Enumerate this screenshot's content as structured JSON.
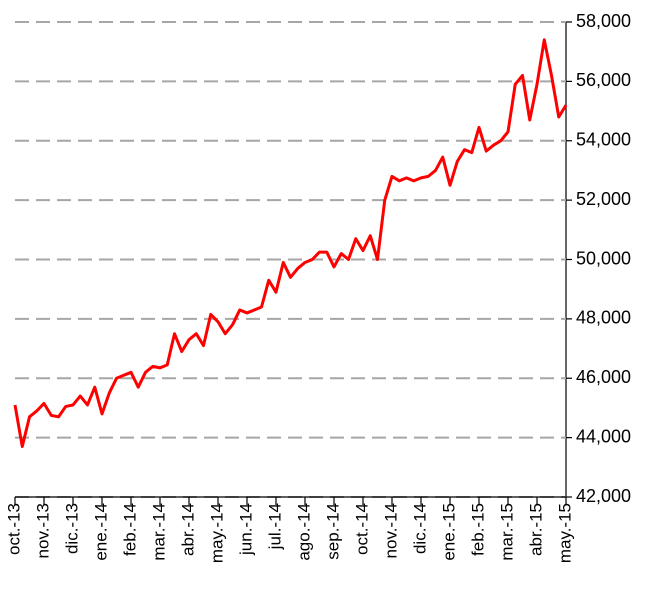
{
  "chart_data": {
    "type": "line",
    "categories": [
      "oct.-13",
      null,
      null,
      null,
      "nov.-13",
      null,
      null,
      null,
      "dic.-13",
      null,
      null,
      null,
      "ene.-14",
      null,
      null,
      null,
      "feb.-14",
      null,
      null,
      null,
      "mar.-14",
      null,
      null,
      null,
      "abr.-14",
      null,
      null,
      null,
      "may.-14",
      null,
      null,
      null,
      "jun.-14",
      null,
      null,
      null,
      "jul.-14",
      null,
      null,
      null,
      "ago.-14",
      null,
      null,
      null,
      "sep.-14",
      null,
      null,
      null,
      "oct.-14",
      null,
      null,
      null,
      "nov.-14",
      null,
      null,
      null,
      "dic.-14",
      null,
      null,
      null,
      "ene.-15",
      null,
      null,
      null,
      "feb.-15",
      null,
      null,
      null,
      "mar.-15",
      null,
      null,
      null,
      "abr.-15",
      null,
      null,
      null,
      "may.-15"
    ],
    "series": [
      {
        "color": "#ff0000",
        "values": [
          45100,
          43700,
          44700,
          44900,
          45150,
          44750,
          44700,
          45050,
          45100,
          45400,
          45100,
          45700,
          44800,
          45500,
          46000,
          46100,
          46200,
          45700,
          46200,
          46400,
          46350,
          46450,
          47500,
          46900,
          47300,
          47500,
          47100,
          48150,
          47900,
          47500,
          47800,
          48300,
          48200,
          48300,
          48400,
          49300,
          48900,
          49900,
          49400,
          49700,
          49900,
          50000,
          50250,
          50250,
          49750,
          50200,
          50000,
          50700,
          50300,
          50800,
          50000,
          52000,
          52800,
          52650,
          52750,
          52650,
          52750,
          52800,
          53000,
          53450,
          52500,
          53300,
          53700,
          53600,
          54450,
          53650,
          53850,
          54000,
          54300,
          55900,
          56200,
          54700,
          55900,
          57400,
          56200,
          54800,
          55200
        ]
      }
    ],
    "ylim": [
      42000,
      58000
    ],
    "yticks": [
      {
        "value": 42000,
        "label": "42,000"
      },
      {
        "value": 44000,
        "label": "44,000"
      },
      {
        "value": 46000,
        "label": "46,000"
      },
      {
        "value": 48000,
        "label": "48,000"
      },
      {
        "value": 50000,
        "label": "50,000"
      },
      {
        "value": 52000,
        "label": "52,000"
      },
      {
        "value": 54000,
        "label": "54,000"
      },
      {
        "value": 56000,
        "label": "56,000"
      },
      {
        "value": 58000,
        "label": "58,000"
      }
    ],
    "grid": true,
    "y_axis_side": "right"
  }
}
